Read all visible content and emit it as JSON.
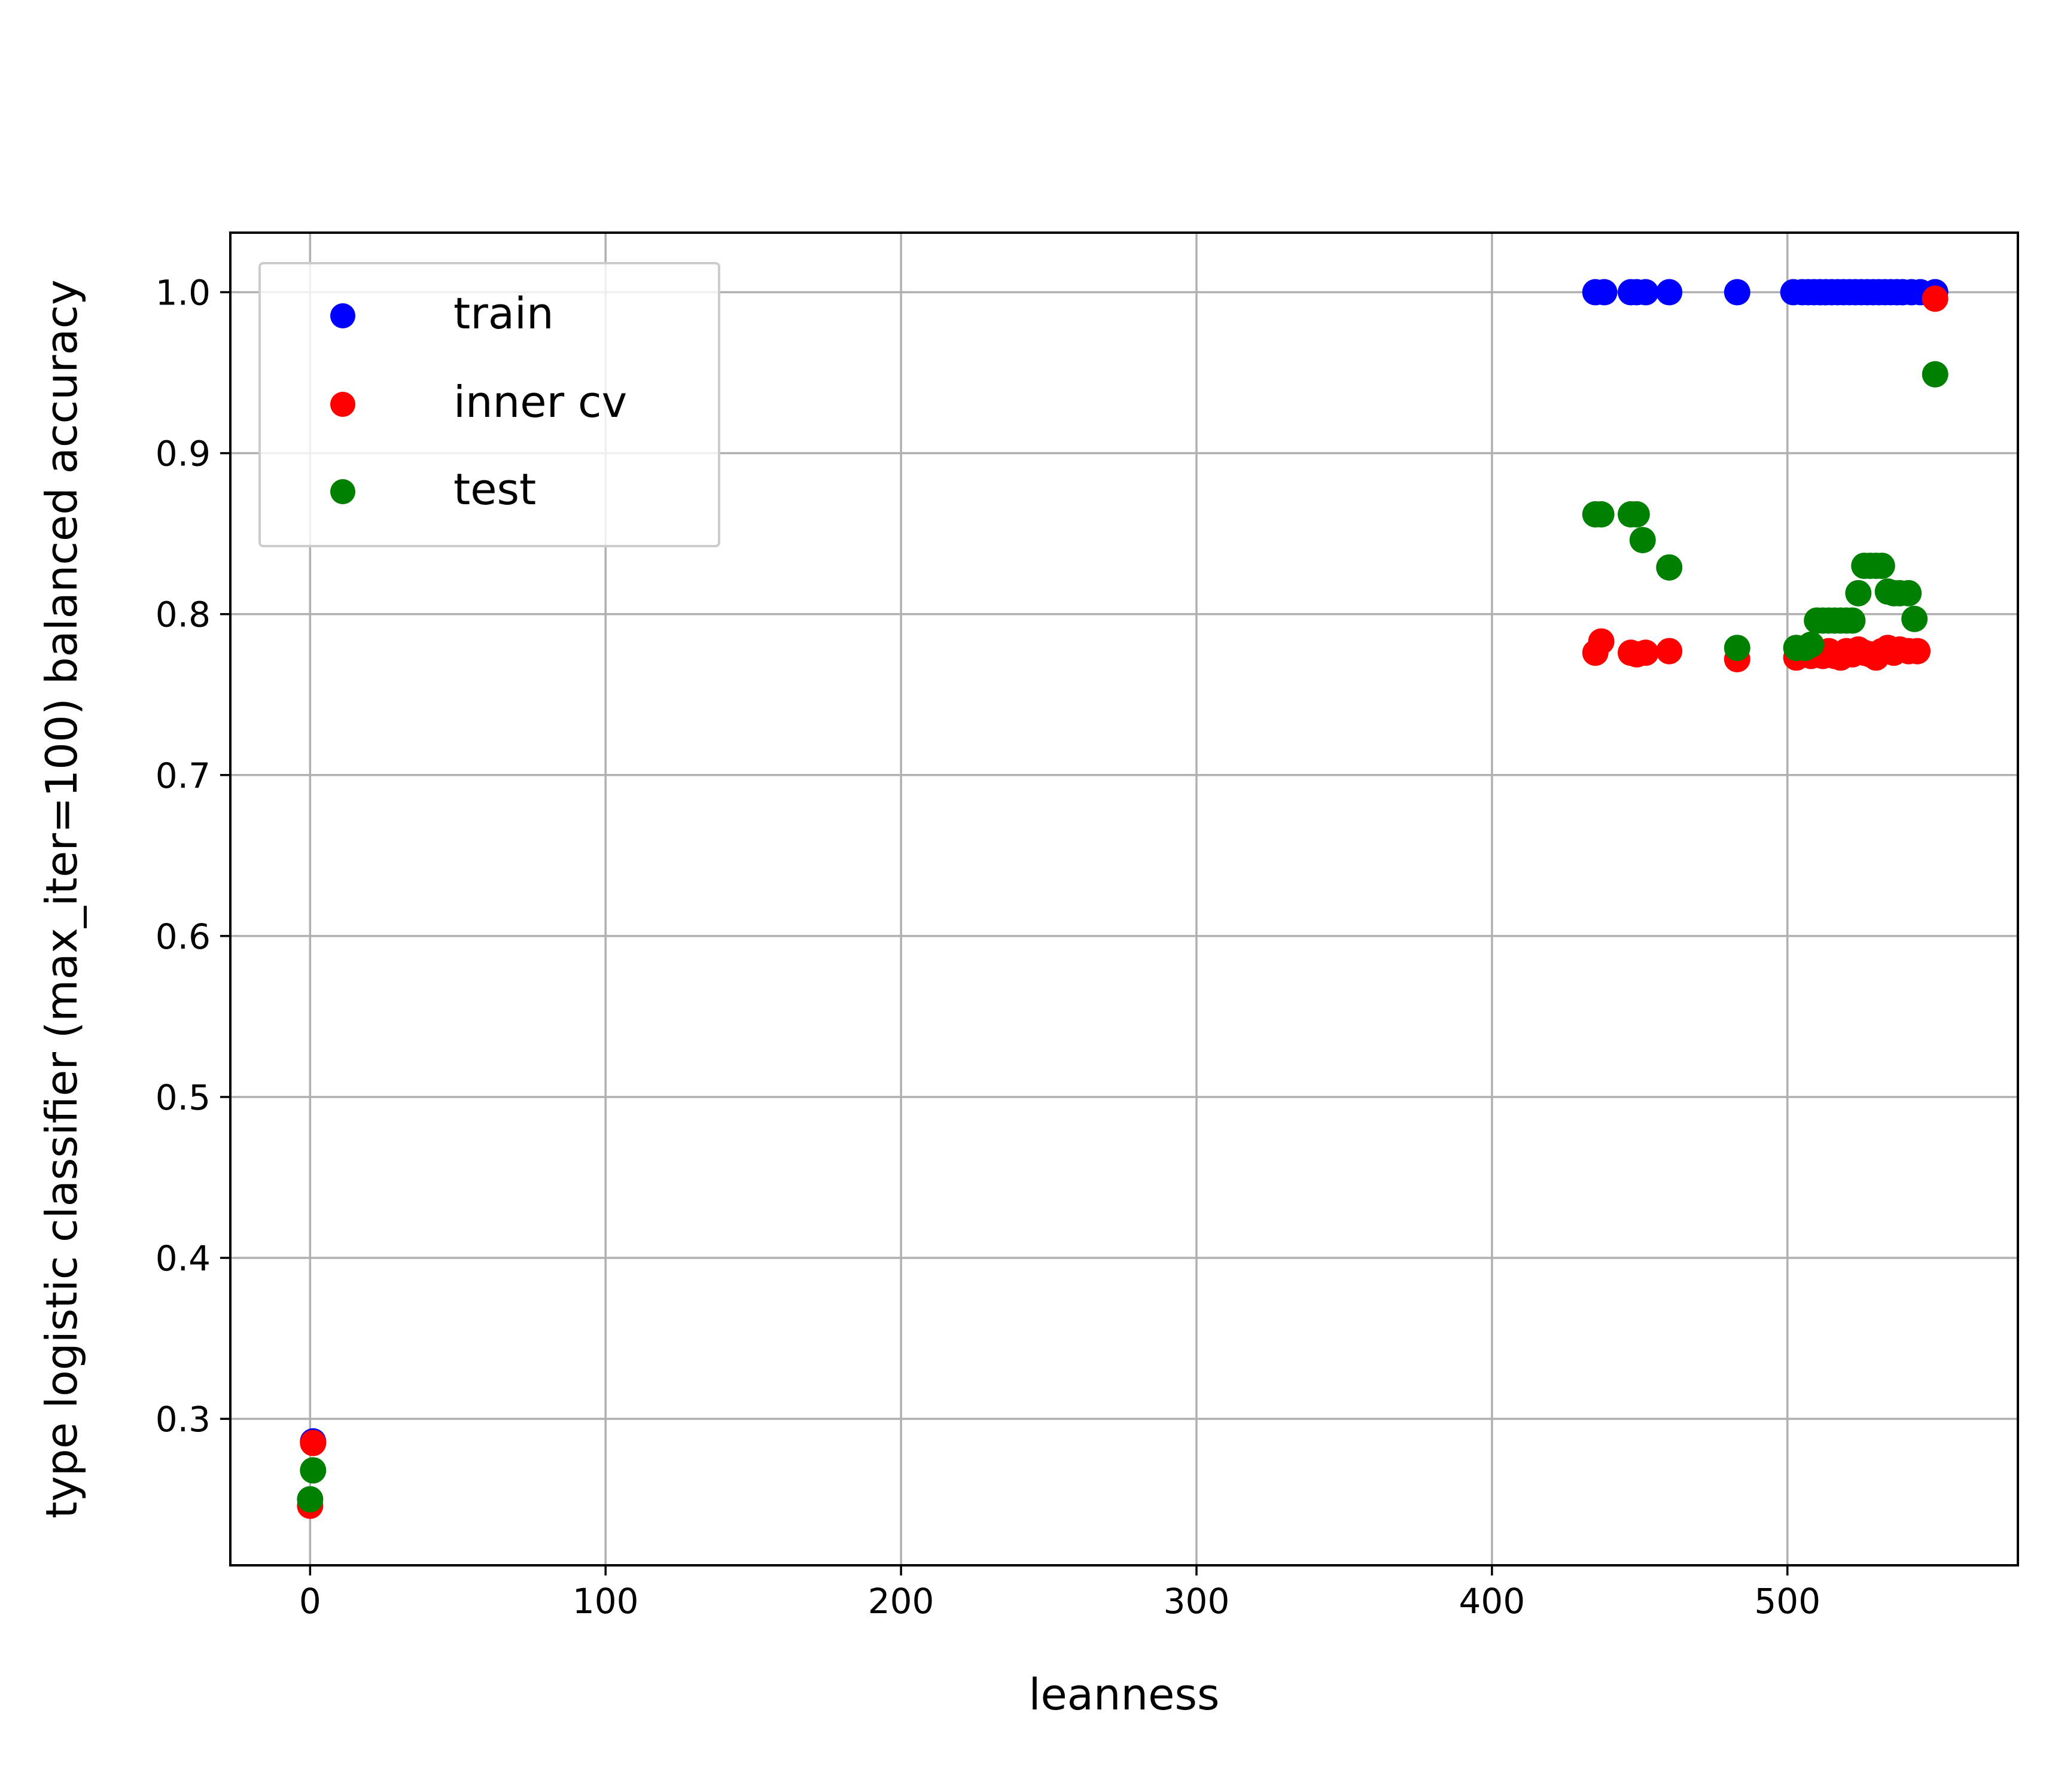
{
  "chart_data": {
    "type": "scatter",
    "title": "",
    "xlabel": "leanness",
    "ylabel": "type logistic classifier (max_iter=100) balanced accuracy",
    "xlim": [
      -27,
      578
    ],
    "ylim": [
      0.209,
      1.037
    ],
    "xticks": [
      0,
      100,
      200,
      300,
      400,
      500
    ],
    "xtick_labels": [
      "0",
      "100",
      "200",
      "300",
      "400",
      "500"
    ],
    "yticks": [
      0.3,
      0.4,
      0.5,
      0.6,
      0.7,
      0.8,
      0.9,
      1.0
    ],
    "ytick_labels": [
      "0.3",
      "0.4",
      "0.5",
      "0.6",
      "0.7",
      "0.8",
      "0.9",
      "1.0"
    ],
    "grid": true,
    "legend_position": "top-left",
    "series": [
      {
        "name": "train",
        "color": "#0000ff",
        "points": [
          [
            1,
            0.286
          ],
          [
            435,
            1.0
          ],
          [
            438,
            1.0
          ],
          [
            447,
            1.0
          ],
          [
            449,
            1.0
          ],
          [
            452,
            1.0
          ],
          [
            460,
            1.0
          ],
          [
            483,
            1.0
          ],
          [
            502,
            1.0
          ],
          [
            505,
            1.0
          ],
          [
            507,
            1.0
          ],
          [
            509,
            1.0
          ],
          [
            511,
            1.0
          ],
          [
            513,
            1.0
          ],
          [
            515,
            1.0
          ],
          [
            517,
            1.0
          ],
          [
            519,
            1.0
          ],
          [
            521,
            1.0
          ],
          [
            523,
            1.0
          ],
          [
            525,
            1.0
          ],
          [
            527,
            1.0
          ],
          [
            529,
            1.0
          ],
          [
            531,
            1.0
          ],
          [
            533,
            1.0
          ],
          [
            535,
            1.0
          ],
          [
            537,
            1.0
          ],
          [
            539,
            1.0
          ],
          [
            542,
            1.0
          ],
          [
            545,
            1.0
          ],
          [
            550,
            1.0
          ]
        ]
      },
      {
        "name": "inner cv",
        "color": "#ff0000",
        "points": [
          [
            1,
            0.285
          ],
          [
            0,
            0.246
          ],
          [
            435,
            0.776
          ],
          [
            437,
            0.783
          ],
          [
            447,
            0.776
          ],
          [
            449,
            0.775
          ],
          [
            452,
            0.776
          ],
          [
            460,
            0.777
          ],
          [
            483,
            0.772
          ],
          [
            503,
            0.773
          ],
          [
            506,
            0.775
          ],
          [
            508,
            0.774
          ],
          [
            510,
            0.776
          ],
          [
            512,
            0.774
          ],
          [
            514,
            0.777
          ],
          [
            516,
            0.774
          ],
          [
            518,
            0.773
          ],
          [
            520,
            0.777
          ],
          [
            522,
            0.775
          ],
          [
            524,
            0.778
          ],
          [
            526,
            0.776
          ],
          [
            528,
            0.775
          ],
          [
            530,
            0.773
          ],
          [
            532,
            0.777
          ],
          [
            534,
            0.779
          ],
          [
            536,
            0.776
          ],
          [
            538,
            0.778
          ],
          [
            541,
            0.777
          ],
          [
            544,
            0.777
          ],
          [
            550,
            0.996
          ]
        ]
      },
      {
        "name": "test",
        "color": "#008000",
        "points": [
          [
            1,
            0.268
          ],
          [
            0,
            0.25
          ],
          [
            435,
            0.862
          ],
          [
            437,
            0.862
          ],
          [
            447,
            0.862
          ],
          [
            449,
            0.862
          ],
          [
            451,
            0.846
          ],
          [
            460,
            0.829
          ],
          [
            483,
            0.779
          ],
          [
            503,
            0.779
          ],
          [
            506,
            0.779
          ],
          [
            508,
            0.781
          ],
          [
            510,
            0.796
          ],
          [
            512,
            0.796
          ],
          [
            514,
            0.796
          ],
          [
            516,
            0.796
          ],
          [
            518,
            0.796
          ],
          [
            520,
            0.796
          ],
          [
            522,
            0.796
          ],
          [
            524,
            0.813
          ],
          [
            526,
            0.83
          ],
          [
            528,
            0.83
          ],
          [
            530,
            0.83
          ],
          [
            532,
            0.83
          ],
          [
            534,
            0.814
          ],
          [
            536,
            0.813
          ],
          [
            538,
            0.813
          ],
          [
            541,
            0.813
          ],
          [
            543,
            0.797
          ],
          [
            550,
            0.949
          ]
        ]
      }
    ]
  }
}
